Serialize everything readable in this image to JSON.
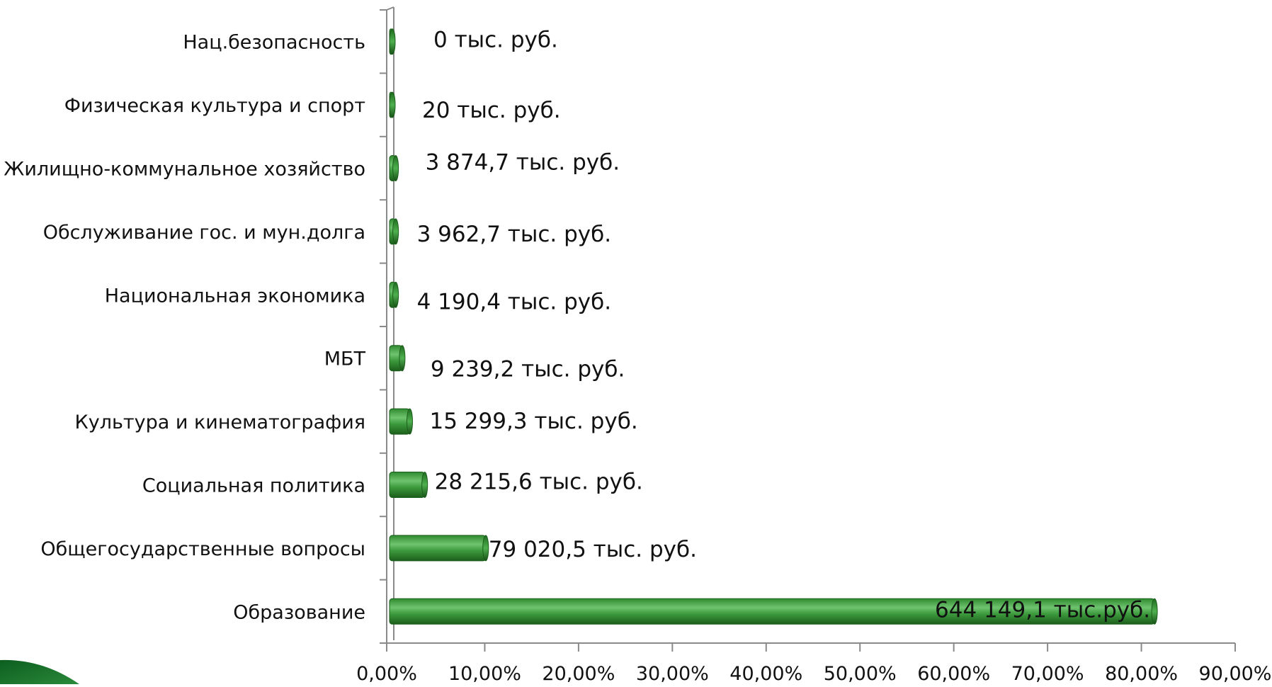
{
  "chart_data": {
    "type": "bar",
    "orientation": "horizontal",
    "categories": [
      "Нац.безопасность",
      "Физическая культура и спорт",
      "Жилищно-коммунальное хозяйство",
      "Обслуживание гос. и мун.долга",
      "Национальная экономика",
      "МБТ",
      "Культура и кинематография",
      "Социальная политика",
      "Общегосударственные вопросы",
      "Образование"
    ],
    "series": [
      {
        "values": [
          0.0,
          0.0,
          0.5,
          0.5,
          0.5,
          1.2,
          2.0,
          3.6,
          10.1,
          81.4
        ],
        "data_labels": [
          "0 тыс. руб.",
          "20 тыс. руб.",
          "3 874,7 тыс. руб.",
          "3 962,7 тыс. руб.",
          "4 190,4 тыс. руб.",
          "9 239,2 тыс. руб.",
          "15 299,3 тыс. руб.",
          "28 215,6 тыс. руб.",
          "79 020,5 тыс. руб.",
          "644 149,1 тыс.руб."
        ]
      }
    ],
    "x_ticks": [
      "0,00%",
      "10,00%",
      "20,00%",
      "30,00%",
      "40,00%",
      "50,00%",
      "60,00%",
      "70,00%",
      "80,00%",
      "90,00%"
    ],
    "xlim": [
      0,
      90
    ],
    "grid": false,
    "legend": "none",
    "colors": {
      "bar_fill": "#3c9a3c",
      "bar_light": "#79c979",
      "bar_dark": "#1c5e1c",
      "axis": "#8a8a8a",
      "decoration": "#0d5e1f"
    }
  }
}
